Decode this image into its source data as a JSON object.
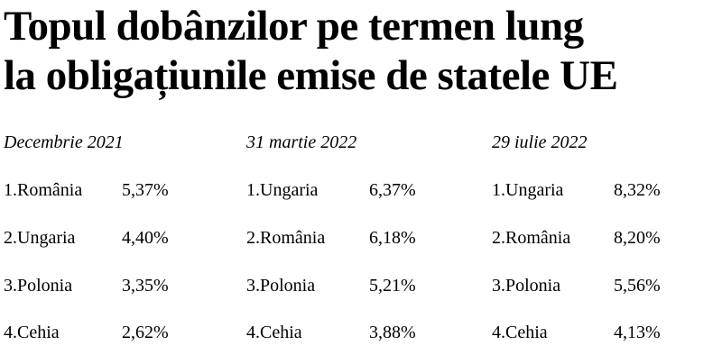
{
  "title": {
    "line1": "Topul dobânzilor pe termen lung",
    "line2": "la obligațiunile emise de statele UE"
  },
  "columns": [
    {
      "date": "Decembrie 2021",
      "rows": [
        {
          "name": "1.România",
          "value": "5,37%"
        },
        {
          "name": "2.Ungaria",
          "value": "4,40%"
        },
        {
          "name": "3.Polonia",
          "value": "3,35%"
        },
        {
          "name": "4.Cehia",
          "value": "2,62%"
        }
      ]
    },
    {
      "date": "31 martie 2022",
      "rows": [
        {
          "name": "1.Ungaria",
          "value": "6,37%"
        },
        {
          "name": "2.România",
          "value": "6,18%"
        },
        {
          "name": "3.Polonia",
          "value": "5,21%"
        },
        {
          "name": "4.Cehia",
          "value": "3,88%"
        }
      ]
    },
    {
      "date": "29 iulie 2022",
      "rows": [
        {
          "name": "1.Ungaria",
          "value": "8,32%"
        },
        {
          "name": "2.România",
          "value": "8,20%"
        },
        {
          "name": "3.Polonia",
          "value": "5,56%"
        },
        {
          "name": "4.Cehia",
          "value": "4,13%"
        }
      ]
    }
  ]
}
